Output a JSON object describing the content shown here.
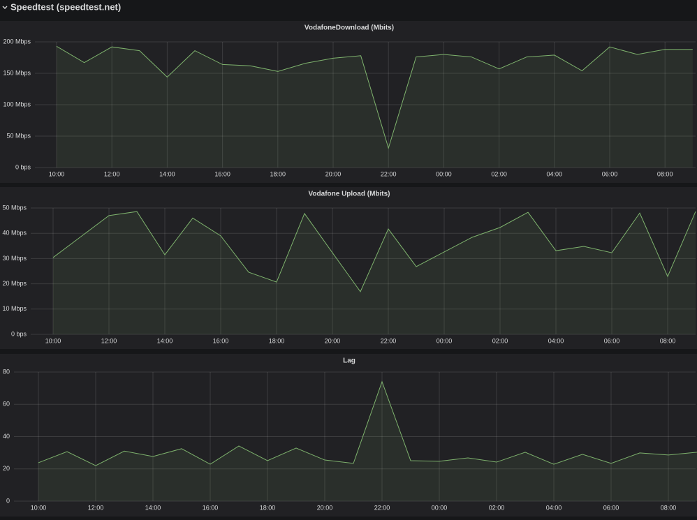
{
  "header": {
    "title": "Speedtest (speedtest.net)"
  },
  "chart_data": [
    {
      "type": "area",
      "title": "VodafoneDownload (Mbits)",
      "grid": true,
      "categories": [
        "10:00",
        null,
        "12:00",
        null,
        "14:00",
        null,
        "16:00",
        null,
        "18:00",
        null,
        "20:00",
        null,
        "22:00",
        null,
        "00:00",
        null,
        "02:00",
        null,
        "04:00",
        null,
        "06:00",
        null,
        "08:00",
        null
      ],
      "series": [
        {
          "color": "#7eb26d",
          "values": [
            193,
            167,
            192,
            186,
            144,
            186,
            164,
            162,
            153,
            166,
            174,
            178,
            31,
            176,
            180,
            176,
            157,
            176,
            179,
            154,
            192,
            180,
            188,
            188
          ]
        }
      ],
      "ylim": [
        0,
        200
      ],
      "yticks": [
        {
          "value": 0,
          "label": "0 bps"
        },
        {
          "value": 50,
          "label": "50 Mbps"
        },
        {
          "value": 100,
          "label": "100 Mbps"
        },
        {
          "value": 150,
          "label": "150 Mbps"
        },
        {
          "value": 200,
          "label": "200 Mbps"
        }
      ]
    },
    {
      "type": "area",
      "title": "Vodafone Upload (Mbits)",
      "grid": true,
      "categories": [
        "10:00",
        null,
        "12:00",
        null,
        "14:00",
        null,
        "16:00",
        null,
        "18:00",
        null,
        "20:00",
        null,
        "22:00",
        null,
        "00:00",
        null,
        "02:00",
        null,
        "04:00",
        null,
        "06:00",
        null,
        "08:00",
        null
      ],
      "series": [
        {
          "color": "#7eb26d",
          "values": [
            30.4,
            38.7,
            47,
            48.6,
            31.5,
            46,
            39,
            24.6,
            20.7,
            47.8,
            32.3,
            16.9,
            41.7,
            26.8,
            32.6,
            38.4,
            42.3,
            48.3,
            33.1,
            34.8,
            32.3,
            48,
            22.9,
            48.6
          ]
        }
      ],
      "ylim": [
        0,
        50
      ],
      "yticks": [
        {
          "value": 0,
          "label": "0 bps"
        },
        {
          "value": 10,
          "label": "10 Mbps"
        },
        {
          "value": 20,
          "label": "20 Mbps"
        },
        {
          "value": 30,
          "label": "30 Mbps"
        },
        {
          "value": 40,
          "label": "40 Mbps"
        },
        {
          "value": 50,
          "label": "50 Mbps"
        }
      ]
    },
    {
      "type": "area",
      "title": "Lag",
      "grid": true,
      "categories": [
        "10:00",
        null,
        "12:00",
        null,
        "14:00",
        null,
        "16:00",
        null,
        "18:00",
        null,
        "20:00",
        null,
        "22:00",
        null,
        "00:00",
        null,
        "02:00",
        null,
        "04:00",
        null,
        "06:00",
        null,
        "08:00",
        null
      ],
      "series": [
        {
          "color": "#7eb26d",
          "values": [
            23.8,
            30.7,
            22,
            31,
            27.7,
            32.5,
            22.9,
            34.2,
            25.1,
            32.9,
            25.5,
            23.4,
            74,
            25.1,
            24.7,
            26.8,
            24.2,
            30.3,
            22.9,
            29,
            23.4,
            29.9,
            28.6,
            30.3
          ]
        }
      ],
      "ylim": [
        0,
        80
      ],
      "yticks": [
        0,
        20,
        40,
        60,
        80
      ]
    }
  ]
}
